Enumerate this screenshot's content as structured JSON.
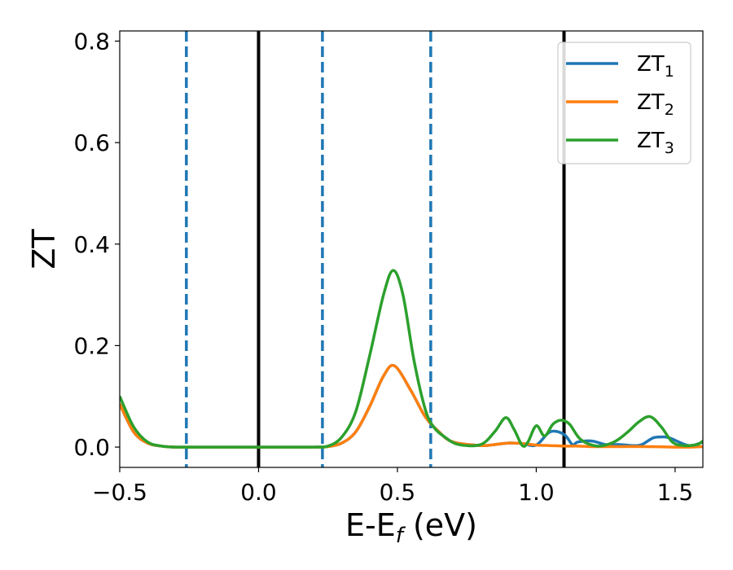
{
  "chart_data": {
    "type": "line",
    "title": "",
    "xlabel": "E-E",
    "xlabel_sub": "f",
    "xlabel_unit": " (eV)",
    "ylabel": "ZT",
    "xlim": [
      -0.5,
      1.6
    ],
    "ylim": [
      -0.04,
      0.82
    ],
    "xticks": [
      -0.5,
      0.0,
      0.5,
      1.0,
      1.5
    ],
    "xtick_labels": [
      "−0.5",
      "0.0",
      "0.5",
      "1.0",
      "1.5"
    ],
    "yticks": [
      0.0,
      0.2,
      0.4,
      0.6,
      0.8
    ],
    "ytick_labels": [
      "0.0",
      "0.2",
      "0.4",
      "0.6",
      "0.8"
    ],
    "grid": false,
    "legend_position": "top-right",
    "vlines": [
      {
        "x": -0.26,
        "style": "dashed",
        "color": "#1f77b4"
      },
      {
        "x": 0.0,
        "style": "solid",
        "color": "#000000"
      },
      {
        "x": 0.23,
        "style": "dashed",
        "color": "#1f77b4"
      },
      {
        "x": 0.62,
        "style": "dashed",
        "color": "#1f77b4"
      },
      {
        "x": 1.1,
        "style": "solid",
        "color": "#000000"
      }
    ],
    "series": [
      {
        "name": "ZT",
        "name_sub": "1",
        "color": "#1f77b4",
        "x": [
          -0.5,
          -0.45,
          -0.4,
          -0.35,
          -0.3,
          -0.2,
          -0.1,
          0.0,
          0.1,
          0.2,
          0.25,
          0.3,
          0.35,
          0.4,
          0.45,
          0.49,
          0.55,
          0.6,
          0.65,
          0.7,
          0.8,
          0.85,
          0.9,
          0.95,
          1.0,
          1.05,
          1.1,
          1.13,
          1.15,
          1.2,
          1.25,
          1.3,
          1.35,
          1.38,
          1.42,
          1.45,
          1.48,
          1.55,
          1.6
        ],
        "y": [
          0.085,
          0.03,
          0.008,
          0.002,
          0.0,
          0.0,
          0.0,
          0.0,
          0.0,
          0.0,
          0.001,
          0.008,
          0.03,
          0.08,
          0.14,
          0.16,
          0.11,
          0.06,
          0.03,
          0.01,
          0.003,
          0.005,
          0.008,
          0.007,
          0.004,
          0.03,
          0.025,
          0.005,
          0.01,
          0.012,
          0.005,
          0.005,
          0.003,
          0.005,
          0.018,
          0.02,
          0.018,
          0.003,
          0.01
        ]
      },
      {
        "name": "ZT",
        "name_sub": "2",
        "color": "#ff7f0e",
        "x": [
          -0.5,
          -0.45,
          -0.4,
          -0.35,
          -0.3,
          -0.2,
          -0.1,
          0.0,
          0.1,
          0.2,
          0.25,
          0.3,
          0.35,
          0.4,
          0.45,
          0.49,
          0.55,
          0.6,
          0.65,
          0.7,
          0.8,
          0.85,
          0.9,
          0.95,
          1.0,
          1.05,
          1.1,
          1.15,
          1.2,
          1.25,
          1.3,
          1.4,
          1.5,
          1.55,
          1.6
        ],
        "y": [
          0.085,
          0.03,
          0.008,
          0.002,
          0.0,
          0.0,
          0.0,
          0.0,
          0.0,
          0.0,
          0.001,
          0.008,
          0.03,
          0.08,
          0.14,
          0.16,
          0.11,
          0.06,
          0.03,
          0.01,
          0.003,
          0.005,
          0.008,
          0.007,
          0.004,
          0.003,
          0.002,
          0.002,
          0.001,
          0.001,
          0.001,
          0.001,
          0.0,
          0.0,
          0.001
        ]
      },
      {
        "name": "ZT",
        "name_sub": "3",
        "color": "#2ca02c",
        "x": [
          -0.5,
          -0.45,
          -0.4,
          -0.35,
          -0.3,
          -0.2,
          -0.1,
          0.0,
          0.1,
          0.2,
          0.25,
          0.3,
          0.35,
          0.4,
          0.45,
          0.485,
          0.52,
          0.56,
          0.6,
          0.63,
          0.67,
          0.72,
          0.8,
          0.85,
          0.89,
          0.92,
          0.95,
          0.97,
          1.0,
          1.03,
          1.06,
          1.09,
          1.12,
          1.16,
          1.22,
          1.28,
          1.33,
          1.37,
          1.41,
          1.45,
          1.49,
          1.53,
          1.58,
          1.6
        ],
        "y": [
          0.1,
          0.04,
          0.01,
          0.002,
          0.0,
          0.0,
          0.0,
          0.0,
          0.0,
          0.0,
          0.002,
          0.02,
          0.07,
          0.18,
          0.3,
          0.348,
          0.3,
          0.17,
          0.075,
          0.04,
          0.02,
          0.005,
          0.005,
          0.03,
          0.058,
          0.035,
          0.003,
          0.01,
          0.042,
          0.022,
          0.045,
          0.053,
          0.045,
          0.015,
          0.002,
          0.01,
          0.03,
          0.05,
          0.06,
          0.04,
          0.01,
          0.003,
          0.005,
          0.012
        ]
      }
    ]
  }
}
